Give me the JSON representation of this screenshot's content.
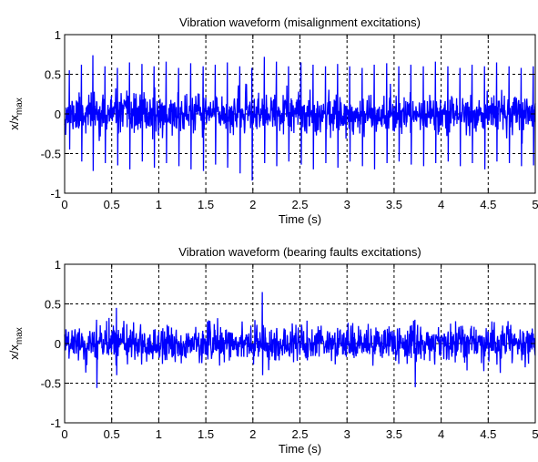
{
  "chart_data": [
    {
      "type": "line",
      "title": "Vibration waveform (misalignment excitations)",
      "xlabel": "Time (s)",
      "ylabel": "x/x",
      "ylabel_subscript": "max",
      "xlim": [
        0,
        5
      ],
      "ylim": [
        -1,
        1
      ],
      "xticks": [
        0,
        0.5,
        1,
        1.5,
        2,
        2.5,
        3,
        3.5,
        4,
        4.5,
        5
      ],
      "xtick_labels": [
        "0",
        "0.5",
        "1",
        "1.5",
        "2",
        "2.5",
        "3",
        "3.5",
        "4",
        "4.5",
        "5"
      ],
      "yticks": [
        -1,
        -0.5,
        0,
        0.5,
        1
      ],
      "ytick_labels": [
        "-1",
        "-0.5",
        "0",
        "0.5",
        "1"
      ],
      "grid": true,
      "grid_style": "dashed",
      "color": "#0000ff",
      "series": [
        {
          "noise_std": 0.12,
          "noise_clip": [
            -0.4,
            0.38
          ],
          "spike_times": [
            0.05,
            0.18,
            0.3,
            0.43,
            0.56,
            0.69,
            0.82,
            0.95,
            1.08,
            1.21,
            1.34,
            1.47,
            1.6,
            1.73,
            1.86,
            1.99,
            2.12,
            2.25,
            2.38,
            2.51,
            2.64,
            2.77,
            2.9,
            3.03,
            3.16,
            3.29,
            3.42,
            3.55,
            3.68,
            3.81,
            3.94,
            4.07,
            4.2,
            4.33,
            4.46,
            4.59,
            4.72,
            4.85,
            4.98
          ],
          "spike_peaks": [
            0.55,
            0.62,
            0.74,
            0.6,
            0.58,
            0.65,
            0.63,
            0.6,
            0.66,
            0.58,
            0.64,
            0.6,
            0.62,
            0.65,
            0.6,
            0.58,
            0.72,
            0.66,
            0.6,
            0.65,
            0.62,
            0.6,
            0.63,
            0.6,
            0.58,
            0.62,
            0.64,
            0.6,
            0.62,
            0.6,
            0.66,
            0.6,
            0.58,
            0.62,
            0.6,
            0.65,
            0.6,
            0.58,
            0.6
          ],
          "spike_troughs": [
            -0.45,
            -0.6,
            -0.72,
            -0.62,
            -0.65,
            -0.7,
            -0.6,
            -0.68,
            -0.62,
            -0.66,
            -0.7,
            -0.72,
            -0.64,
            -0.68,
            -0.75,
            -0.84,
            -0.62,
            -0.66,
            -0.6,
            -0.64,
            -0.7,
            -0.62,
            -0.68,
            -0.6,
            -0.66,
            -0.7,
            -0.62,
            -0.6,
            -0.64,
            -0.66,
            -0.62,
            -0.6,
            -0.66,
            -0.62,
            -0.7,
            -0.6,
            -0.62,
            -0.66,
            -0.65
          ]
        }
      ]
    },
    {
      "type": "line",
      "title": "Vibration waveform (bearing faults excitations)",
      "xlabel": "Time (s)",
      "ylabel": "x/x",
      "ylabel_subscript": "max",
      "xlim": [
        0,
        5
      ],
      "ylim": [
        -1,
        1
      ],
      "xticks": [
        0,
        0.5,
        1,
        1.5,
        2,
        2.5,
        3,
        3.5,
        4,
        4.5,
        5
      ],
      "xtick_labels": [
        "0",
        "0.5",
        "1",
        "1.5",
        "2",
        "2.5",
        "3",
        "3.5",
        "4",
        "4.5",
        "5"
      ],
      "yticks": [
        -1,
        -0.5,
        0,
        0.5,
        1
      ],
      "ytick_labels": [
        "-1",
        "-0.5",
        "0",
        "0.5",
        "1"
      ],
      "grid": true,
      "grid_style": "dashed",
      "color": "#0000ff",
      "series": [
        {
          "noise_std": 0.11,
          "noise_clip": [
            -0.42,
            0.42
          ],
          "spike_times": [
            0.34,
            0.55,
            2.1,
            3.72
          ],
          "spike_peaks": [
            0.3,
            0.45,
            0.65,
            0.3
          ],
          "spike_troughs": [
            -0.56,
            -0.4,
            -0.4,
            -0.55
          ]
        }
      ]
    }
  ]
}
